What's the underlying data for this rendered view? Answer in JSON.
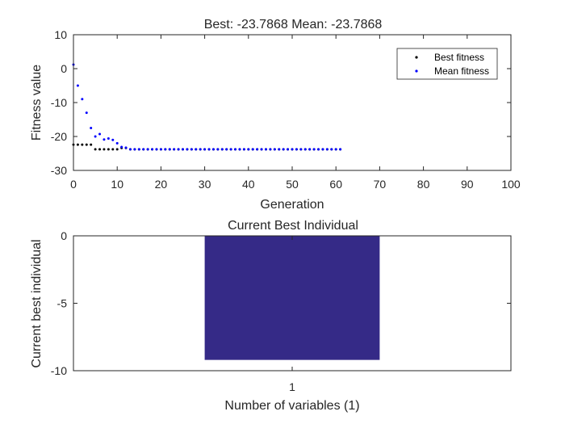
{
  "chart_data": [
    {
      "type": "scatter",
      "title": "Best: -23.7868 Mean: -23.7868",
      "xlabel": "Generation",
      "ylabel": "Fitness value",
      "xlim": [
        0,
        100
      ],
      "ylim": [
        -30,
        10
      ],
      "xticks": [
        0,
        10,
        20,
        30,
        40,
        50,
        60,
        70,
        80,
        90,
        100
      ],
      "yticks": [
        -30,
        -20,
        -10,
        0,
        10
      ],
      "grid": false,
      "legend_position": "top-right",
      "series": [
        {
          "name": "Best fitness",
          "color": "#000000",
          "points": [
            [
              0,
              -22.4
            ],
            [
              1,
              -22.4
            ],
            [
              2,
              -22.4
            ],
            [
              3,
              -22.4
            ],
            [
              4,
              -22.4
            ],
            [
              5,
              -23.7868
            ],
            [
              6,
              -23.7868
            ],
            [
              7,
              -23.7868
            ],
            [
              8,
              -23.7868
            ],
            [
              9,
              -23.7868
            ],
            [
              10,
              -23.7868
            ],
            [
              11,
              -23.4
            ],
            [
              12,
              -23.4
            ],
            [
              13,
              -23.7868
            ],
            [
              14,
              -23.7868
            ],
            [
              15,
              -23.7868
            ],
            [
              16,
              -23.7868
            ],
            [
              17,
              -23.7868
            ],
            [
              18,
              -23.7868
            ],
            [
              19,
              -23.7868
            ],
            [
              20,
              -23.7868
            ],
            [
              21,
              -23.7868
            ],
            [
              22,
              -23.7868
            ],
            [
              23,
              -23.7868
            ],
            [
              24,
              -23.7868
            ],
            [
              25,
              -23.7868
            ],
            [
              26,
              -23.7868
            ],
            [
              27,
              -23.7868
            ],
            [
              28,
              -23.7868
            ],
            [
              29,
              -23.7868
            ],
            [
              30,
              -23.7868
            ],
            [
              31,
              -23.7868
            ],
            [
              32,
              -23.7868
            ],
            [
              33,
              -23.7868
            ],
            [
              34,
              -23.7868
            ],
            [
              35,
              -23.7868
            ],
            [
              36,
              -23.7868
            ],
            [
              37,
              -23.7868
            ],
            [
              38,
              -23.7868
            ],
            [
              39,
              -23.7868
            ],
            [
              40,
              -23.7868
            ],
            [
              41,
              -23.7868
            ],
            [
              42,
              -23.7868
            ],
            [
              43,
              -23.7868
            ],
            [
              44,
              -23.7868
            ],
            [
              45,
              -23.7868
            ],
            [
              46,
              -23.7868
            ],
            [
              47,
              -23.7868
            ],
            [
              48,
              -23.7868
            ],
            [
              49,
              -23.7868
            ],
            [
              50,
              -23.7868
            ],
            [
              51,
              -23.7868
            ],
            [
              52,
              -23.7868
            ],
            [
              53,
              -23.7868
            ],
            [
              54,
              -23.7868
            ],
            [
              55,
              -23.7868
            ],
            [
              56,
              -23.7868
            ],
            [
              57,
              -23.7868
            ],
            [
              58,
              -23.7868
            ],
            [
              59,
              -23.7868
            ],
            [
              60,
              -23.7868
            ],
            [
              61,
              -23.7868
            ]
          ]
        },
        {
          "name": "Mean fitness",
          "color": "#0000ff",
          "points": [
            [
              0,
              1.2
            ],
            [
              1,
              -5.0
            ],
            [
              2,
              -9.0
            ],
            [
              3,
              -13.0
            ],
            [
              4,
              -17.5
            ],
            [
              5,
              -20.0
            ],
            [
              6,
              -19.3
            ],
            [
              7,
              -20.9
            ],
            [
              8,
              -20.6
            ],
            [
              9,
              -21.0
            ],
            [
              10,
              -22.0
            ],
            [
              11,
              -23.1
            ],
            [
              12,
              -23.3
            ],
            [
              13,
              -23.7868
            ],
            [
              14,
              -23.7868
            ],
            [
              15,
              -23.7868
            ],
            [
              16,
              -23.7868
            ],
            [
              17,
              -23.7868
            ],
            [
              18,
              -23.7868
            ],
            [
              19,
              -23.7868
            ],
            [
              20,
              -23.7868
            ],
            [
              21,
              -23.7868
            ],
            [
              22,
              -23.7868
            ],
            [
              23,
              -23.7868
            ],
            [
              24,
              -23.7868
            ],
            [
              25,
              -23.7868
            ],
            [
              26,
              -23.7868
            ],
            [
              27,
              -23.7868
            ],
            [
              28,
              -23.7868
            ],
            [
              29,
              -23.7868
            ],
            [
              30,
              -23.7868
            ],
            [
              31,
              -23.7868
            ],
            [
              32,
              -23.7868
            ],
            [
              33,
              -23.7868
            ],
            [
              34,
              -23.7868
            ],
            [
              35,
              -23.7868
            ],
            [
              36,
              -23.7868
            ],
            [
              37,
              -23.7868
            ],
            [
              38,
              -23.7868
            ],
            [
              39,
              -23.7868
            ],
            [
              40,
              -23.7868
            ],
            [
              41,
              -23.7868
            ],
            [
              42,
              -23.7868
            ],
            [
              43,
              -23.7868
            ],
            [
              44,
              -23.7868
            ],
            [
              45,
              -23.7868
            ],
            [
              46,
              -23.7868
            ],
            [
              47,
              -23.7868
            ],
            [
              48,
              -23.7868
            ],
            [
              49,
              -23.7868
            ],
            [
              50,
              -23.7868
            ],
            [
              51,
              -23.7868
            ],
            [
              52,
              -23.7868
            ],
            [
              53,
              -23.7868
            ],
            [
              54,
              -23.7868
            ],
            [
              55,
              -23.7868
            ],
            [
              56,
              -23.7868
            ],
            [
              57,
              -23.7868
            ],
            [
              58,
              -23.7868
            ],
            [
              59,
              -23.7868
            ],
            [
              60,
              -23.7868
            ],
            [
              61,
              -23.7868
            ]
          ]
        }
      ]
    },
    {
      "type": "bar",
      "title": "Current Best Individual",
      "xlabel": "Number of variables (1)",
      "ylabel": "Current best individual",
      "categories": [
        "1"
      ],
      "values": [
        -9.2
      ],
      "ylim": [
        -10,
        0
      ],
      "yticks": [
        -10,
        -5,
        0
      ],
      "bar_color": "#352a87",
      "grid": false
    }
  ]
}
